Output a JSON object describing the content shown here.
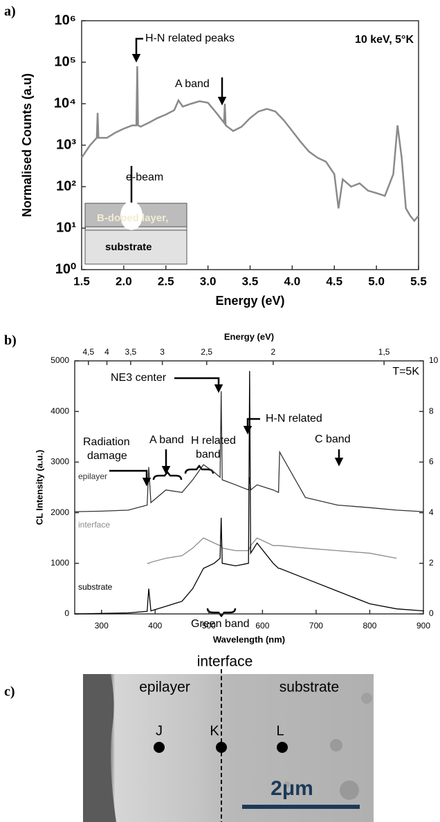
{
  "panel_labels": [
    "a)",
    "b)",
    "c)"
  ],
  "chart_data": [
    {
      "type": "line",
      "log_y": true,
      "xlabel": "Energy (eV)",
      "ylabel": "Normalised Counts (a.u)",
      "xlim": [
        1.5,
        5.5
      ],
      "ylim": [
        1,
        1000000
      ],
      "xticks": [
        1.5,
        {
          "value": 2,
          "label": "2.0"
        },
        2.5,
        {
          "value": 3,
          "label": "3.0"
        },
        3.5,
        {
          "value": 4,
          "label": "4.0"
        },
        4.5,
        {
          "value": 5,
          "label": "5.0"
        },
        5.5
      ],
      "yticks": [
        {
          "value": 1,
          "label": "10⁰"
        },
        {
          "value": 10,
          "label": "10¹"
        },
        {
          "value": 100,
          "label": "10²"
        },
        {
          "value": 1000,
          "label": "10³"
        },
        {
          "value": 10000,
          "label": "10⁴"
        },
        {
          "value": 100000,
          "label": "10⁵"
        },
        {
          "value": 1000000,
          "label": "10⁶"
        }
      ],
      "x": [
        1.5,
        1.6,
        1.68,
        1.69,
        1.7,
        1.8,
        1.9,
        2.0,
        2.1,
        2.15,
        2.16,
        2.17,
        2.2,
        2.3,
        2.4,
        2.5,
        2.6,
        2.65,
        2.7,
        2.8,
        2.9,
        3.0,
        3.1,
        3.19,
        3.2,
        3.21,
        3.3,
        3.4,
        3.5,
        3.6,
        3.7,
        3.8,
        3.9,
        4.0,
        4.1,
        4.2,
        4.3,
        4.4,
        4.5,
        4.55,
        4.6,
        4.7,
        4.8,
        4.9,
        5.0,
        5.1,
        5.2,
        5.25,
        5.3,
        5.35,
        5.4,
        5.45,
        5.5
      ],
      "series": [
        {
          "color": "#8a8a8a",
          "values": [
            500,
            1000,
            1500,
            6000,
            1500,
            1500,
            2000,
            2500,
            3000,
            3000,
            80000,
            3000,
            2800,
            3500,
            4500,
            5500,
            7000,
            12000,
            8500,
            10000,
            11500,
            10500,
            6000,
            3500,
            10000,
            3000,
            2200,
            2800,
            4500,
            6500,
            7500,
            6500,
            4000,
            2200,
            1200,
            700,
            500,
            400,
            200,
            30,
            150,
            100,
            120,
            80,
            70,
            60,
            200,
            3000,
            500,
            30,
            20,
            15,
            20
          ]
        }
      ],
      "annotations": [
        "10 keV, 5°K",
        "H-N related peaks",
        "A band",
        "e-beam"
      ],
      "inset": {
        "layer": "B-doped layer,",
        "substrate": "substrate"
      }
    },
    {
      "type": "line",
      "xlabel": "Wavelength (nm)",
      "ylabel": "CL Intensity (a.u.)",
      "x2label": "Energy (eV)",
      "xlim": [
        250,
        900
      ],
      "ylim": [
        0,
        5000
      ],
      "y2lim": [
        0,
        10
      ],
      "xticks": [
        300,
        400,
        500,
        600,
        700,
        800,
        900
      ],
      "yticks": [
        0,
        1000,
        2000,
        3000,
        4000,
        5000
      ],
      "y2ticks": [
        0,
        2,
        4,
        6,
        8,
        10
      ],
      "x2ticks": [
        {
          "value": 4.5,
          "label": "4,5"
        },
        4,
        {
          "value": 3.5,
          "label": "3,5"
        },
        3,
        {
          "value": 2.5,
          "label": "2,5"
        },
        2,
        {
          "value": 1.5,
          "label": "1,5"
        }
      ],
      "x": [
        250,
        300,
        350,
        385,
        388,
        392,
        420,
        450,
        470,
        490,
        510,
        521,
        523,
        525,
        550,
        574,
        576,
        578,
        590,
        620,
        630,
        632,
        680,
        740,
        800,
        850,
        900
      ],
      "series": [
        {
          "name": "epilayer",
          "color": "#333333",
          "values": [
            2020,
            2030,
            2050,
            2150,
            2900,
            2200,
            2450,
            2400,
            2650,
            2950,
            2800,
            2700,
            4400,
            2650,
            2550,
            2450,
            2700,
            2450,
            2550,
            2450,
            2400,
            3200,
            2300,
            2150,
            2100,
            2050,
            2020
          ]
        },
        {
          "name": "interface",
          "color": "#8a8a8a",
          "values": [
            null,
            null,
            null,
            1000,
            1000,
            1020,
            1100,
            1150,
            1300,
            1500,
            1400,
            1350,
            1350,
            1300,
            1250,
            1250,
            1300,
            1350,
            1500,
            1350,
            1350,
            1350,
            1300,
            1250,
            1200,
            1100,
            null
          ]
        },
        {
          "name": "substrate",
          "color": "#000000",
          "values": [
            0,
            10,
            20,
            50,
            500,
            60,
            150,
            250,
            500,
            900,
            1000,
            1100,
            1900,
            1000,
            950,
            1000,
            4800,
            1200,
            1400,
            1000,
            900,
            900,
            700,
            450,
            200,
            100,
            60
          ]
        }
      ],
      "annotations": [
        "NE3 center",
        "T=5K",
        "A band",
        "H-N related",
        [
          "Radiation",
          "damage"
        ],
        [
          "H related",
          "band"
        ],
        "C band",
        "Green band"
      ]
    }
  ],
  "image_panel": {
    "title": "interface",
    "left": "epilayer",
    "right": "substrate",
    "points": [
      "J",
      "K",
      "L"
    ],
    "scale": "2μm"
  }
}
